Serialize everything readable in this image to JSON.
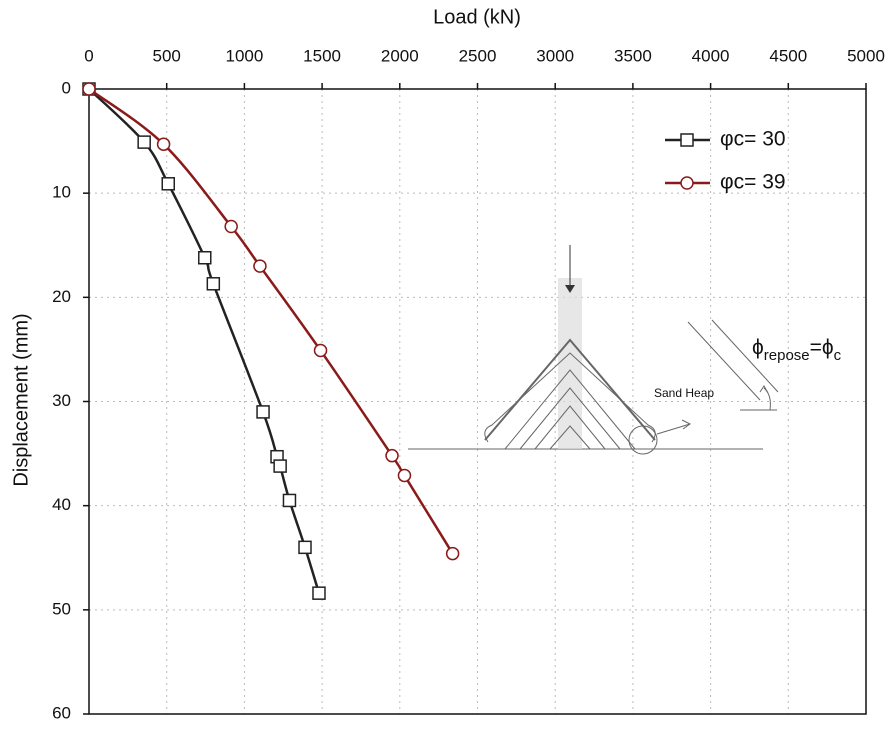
{
  "chart_data": {
    "type": "scatter",
    "x_label": "Load (kN)",
    "y_label": "Displacement (mm)",
    "xlim": [
      0,
      5000
    ],
    "xticks": [
      0,
      500,
      1000,
      1500,
      2000,
      2500,
      3000,
      3500,
      4000,
      4500,
      5000
    ],
    "ylim": [
      0,
      60
    ],
    "yticks": [
      0,
      10,
      20,
      30,
      40,
      50,
      60
    ],
    "y_inverted": true,
    "x_axis_position": "top",
    "grid": true,
    "legend_position": "upper right",
    "series": [
      {
        "name": "φc= 30",
        "color": "#222222",
        "marker": "square",
        "x": [
          0,
          355,
          510,
          745,
          800,
          1120,
          1210,
          1230,
          1290,
          1390,
          1480
        ],
        "values": [
          0,
          5.1,
          9.1,
          16.2,
          18.7,
          31,
          35.3,
          36.2,
          39.5,
          44,
          48.4
        ]
      },
      {
        "name": "φc= 39",
        "color": "#8b1a1a",
        "marker": "circle",
        "x": [
          0,
          480,
          915,
          1100,
          1490,
          1950,
          2030,
          2340
        ],
        "values": [
          0,
          5.3,
          13.2,
          17,
          25.1,
          35.2,
          37.1,
          44.6
        ]
      }
    ],
    "inset": {
      "label": "Sand Heap",
      "angle_label": [
        "ϕ",
        "repose",
        "=ϕ",
        "c"
      ]
    }
  }
}
